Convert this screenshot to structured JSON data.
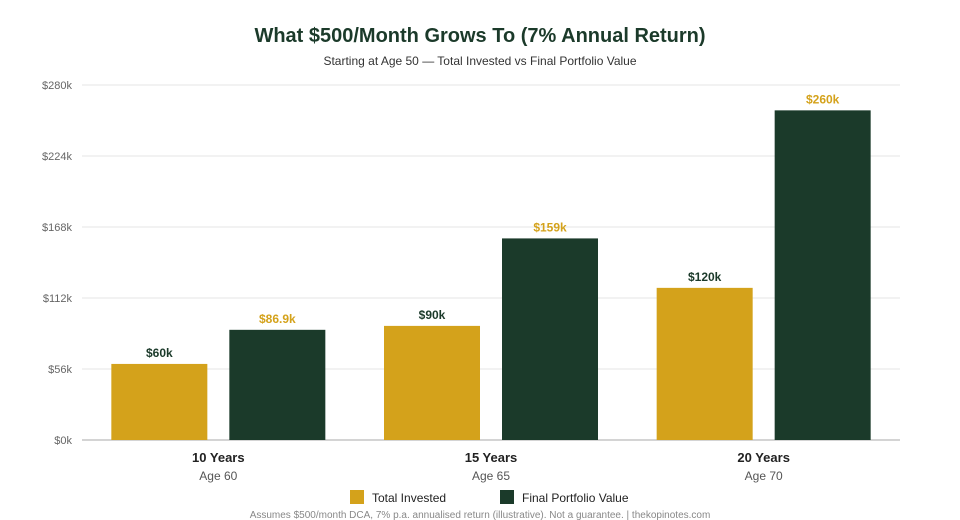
{
  "chart_data": {
    "type": "bar",
    "title": "What $500/Month Grows To (7% Annual Return)",
    "subtitle": "Starting at Age 50 — Total Invested vs Final Portfolio Value",
    "categories": [
      "10 Years",
      "15 Years",
      "20 Years"
    ],
    "category_sublabels": [
      "Age 60",
      "Age 65",
      "Age 70"
    ],
    "series": [
      {
        "name": "Total Invested",
        "color": "#d4a21b",
        "label_color": "#1b3a2a",
        "values": [
          60000,
          90000,
          120000
        ],
        "labels": [
          "$60k",
          "$90k",
          "$120k"
        ]
      },
      {
        "name": "Final Portfolio Value",
        "color": "#1b3a2a",
        "label_color": "#d4a21b",
        "values": [
          86900,
          159000,
          260000
        ],
        "labels": [
          "$86.9k",
          "$159k",
          "$260k"
        ]
      }
    ],
    "ylim": [
      0,
      280000
    ],
    "yticks": [
      0,
      56000,
      112000,
      168000,
      224000,
      280000
    ],
    "ytick_labels": [
      "$0k",
      "$56k",
      "$112k",
      "$168k",
      "$224k",
      "$280k"
    ],
    "grid": true,
    "legend_position": "bottom",
    "footnote": "Assumes $500/month DCA, 7% p.a. annualised return (illustrative). Not a guarantee. | thekopinotes.com",
    "title_color": "#1b3a2a"
  }
}
